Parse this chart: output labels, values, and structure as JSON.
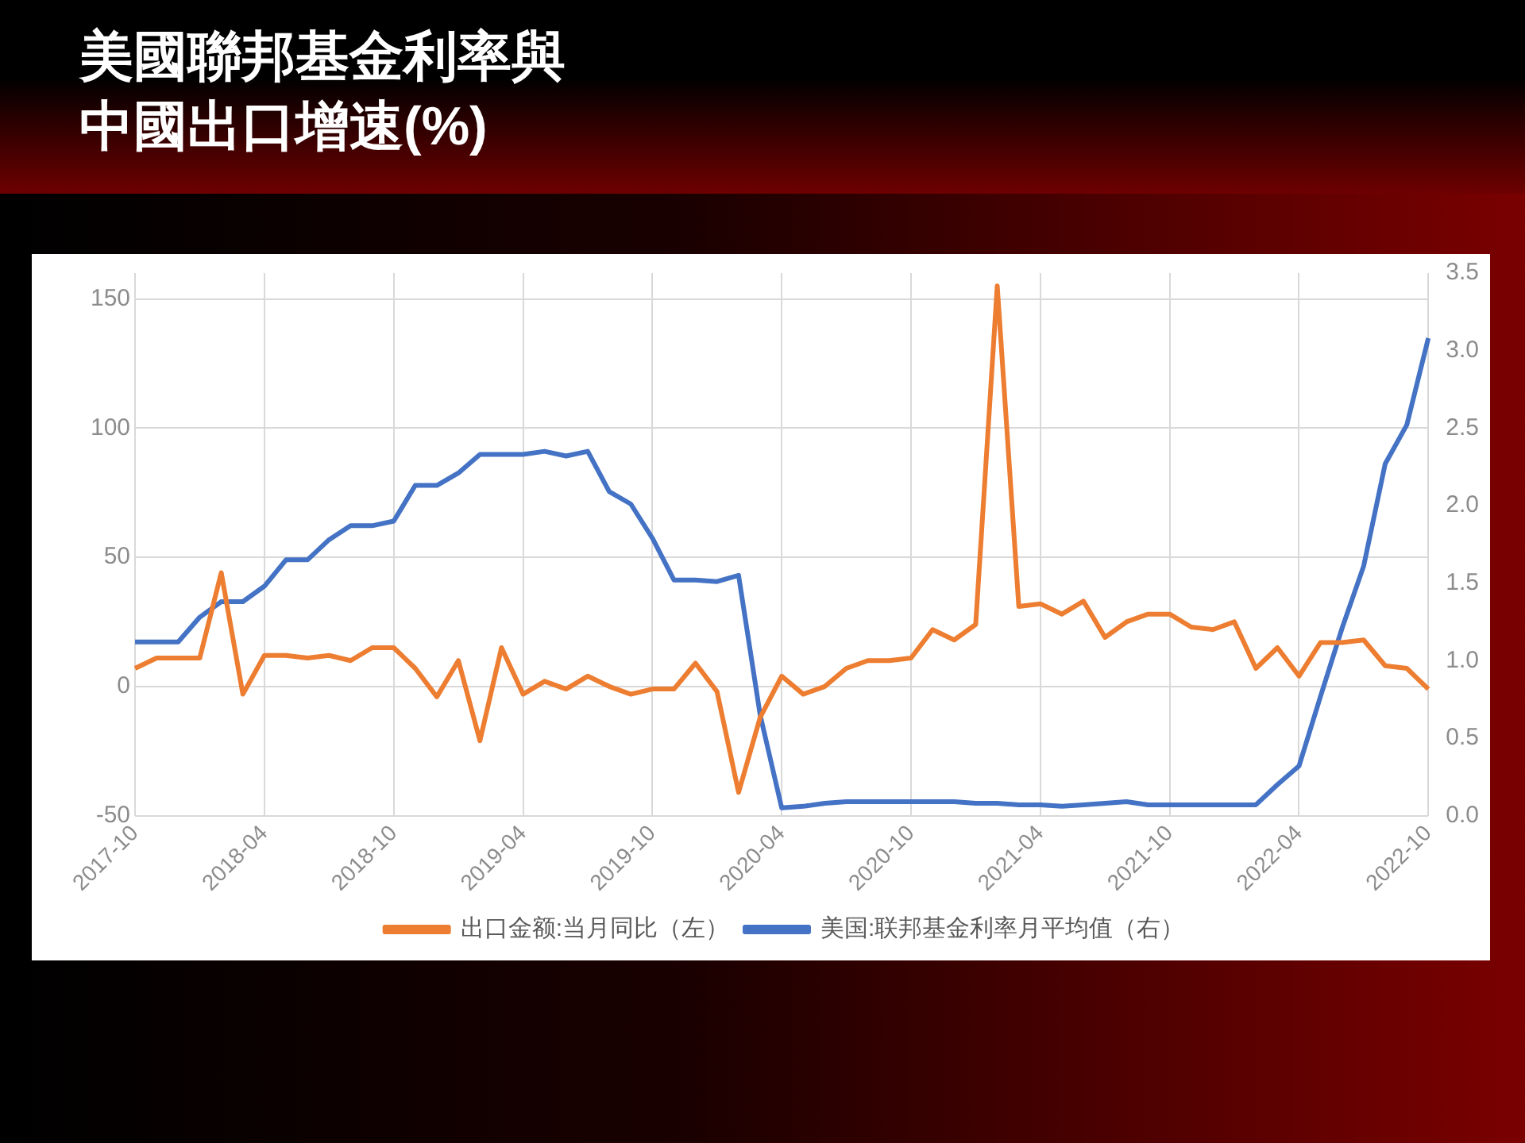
{
  "chart_data": {
    "type": "line",
    "title": "美國聯邦基金利率與中國出口增速(%)",
    "categories": [
      "2017-10",
      null,
      null,
      null,
      null,
      null,
      "2018-04",
      null,
      null,
      null,
      null,
      null,
      "2018-10",
      null,
      null,
      null,
      null,
      null,
      "2019-04",
      null,
      null,
      null,
      null,
      null,
      "2019-10",
      null,
      null,
      null,
      null,
      null,
      "2020-04",
      null,
      null,
      null,
      null,
      null,
      "2020-10",
      null,
      null,
      null,
      null,
      null,
      "2021-04",
      null,
      null,
      null,
      null,
      null,
      "2021-10",
      null,
      null,
      null,
      null,
      null,
      "2022-04",
      null,
      null,
      null,
      null,
      null,
      "2022-10"
    ],
    "series": [
      {
        "name": "出口金额:当月同比（左）",
        "color": "#ed7d31",
        "values": [
          7,
          11,
          11,
          11,
          44,
          -3,
          12,
          12,
          11,
          12,
          10,
          15,
          15,
          7,
          -4,
          10,
          -21,
          15,
          -3,
          2,
          -1,
          4,
          0,
          -3,
          -1,
          -1,
          9,
          -2,
          -41,
          -12,
          4,
          -3,
          0,
          7,
          10,
          10,
          11,
          22,
          18,
          24,
          155,
          31,
          32,
          28,
          33,
          19,
          25,
          28,
          28,
          23,
          22,
          25,
          7,
          15,
          4,
          17,
          17,
          18,
          8,
          7,
          -1
        ]
      },
      {
        "name": "美国:联邦基金利率月平均值（右）",
        "color": "#4472c4",
        "axis": "y2",
        "values": [
          1.12,
          1.12,
          1.12,
          1.28,
          1.38,
          1.38,
          1.48,
          1.65,
          1.65,
          1.78,
          1.87,
          1.87,
          1.9,
          2.13,
          2.13,
          2.21,
          2.33,
          2.33,
          2.33,
          2.35,
          2.32,
          2.35,
          2.09,
          2.01,
          1.79,
          1.52,
          1.52,
          1.51,
          1.55,
          0.65,
          0.05,
          0.06,
          0.08,
          0.09,
          0.09,
          0.09,
          0.09,
          0.09,
          0.09,
          0.08,
          0.08,
          0.07,
          0.07,
          0.06,
          0.07,
          0.08,
          0.09,
          0.07,
          0.07,
          0.07,
          0.07,
          0.07,
          0.07,
          0.2,
          0.32,
          0.77,
          1.21,
          1.61,
          2.27,
          2.52,
          3.08
        ]
      }
    ],
    "ylim": [
      -50,
      160
    ],
    "yticks": [
      -50,
      0,
      50,
      100,
      150
    ],
    "y2lim": [
      0,
      3.5
    ],
    "y2ticks": [
      {
        "value": 0,
        "label": "0.0"
      },
      {
        "value": 0.5,
        "label": "0.5"
      },
      {
        "value": 1,
        "label": "1.0"
      },
      {
        "value": 1.5,
        "label": "1.5"
      },
      {
        "value": 2,
        "label": "2.0"
      },
      {
        "value": 2.5,
        "label": "2.5"
      },
      {
        "value": 3,
        "label": "3.0"
      },
      {
        "value": 3.5,
        "label": "3.5"
      }
    ],
    "grid": true,
    "legend": "bottom",
    "marker": "none",
    "line_style": "solid"
  }
}
